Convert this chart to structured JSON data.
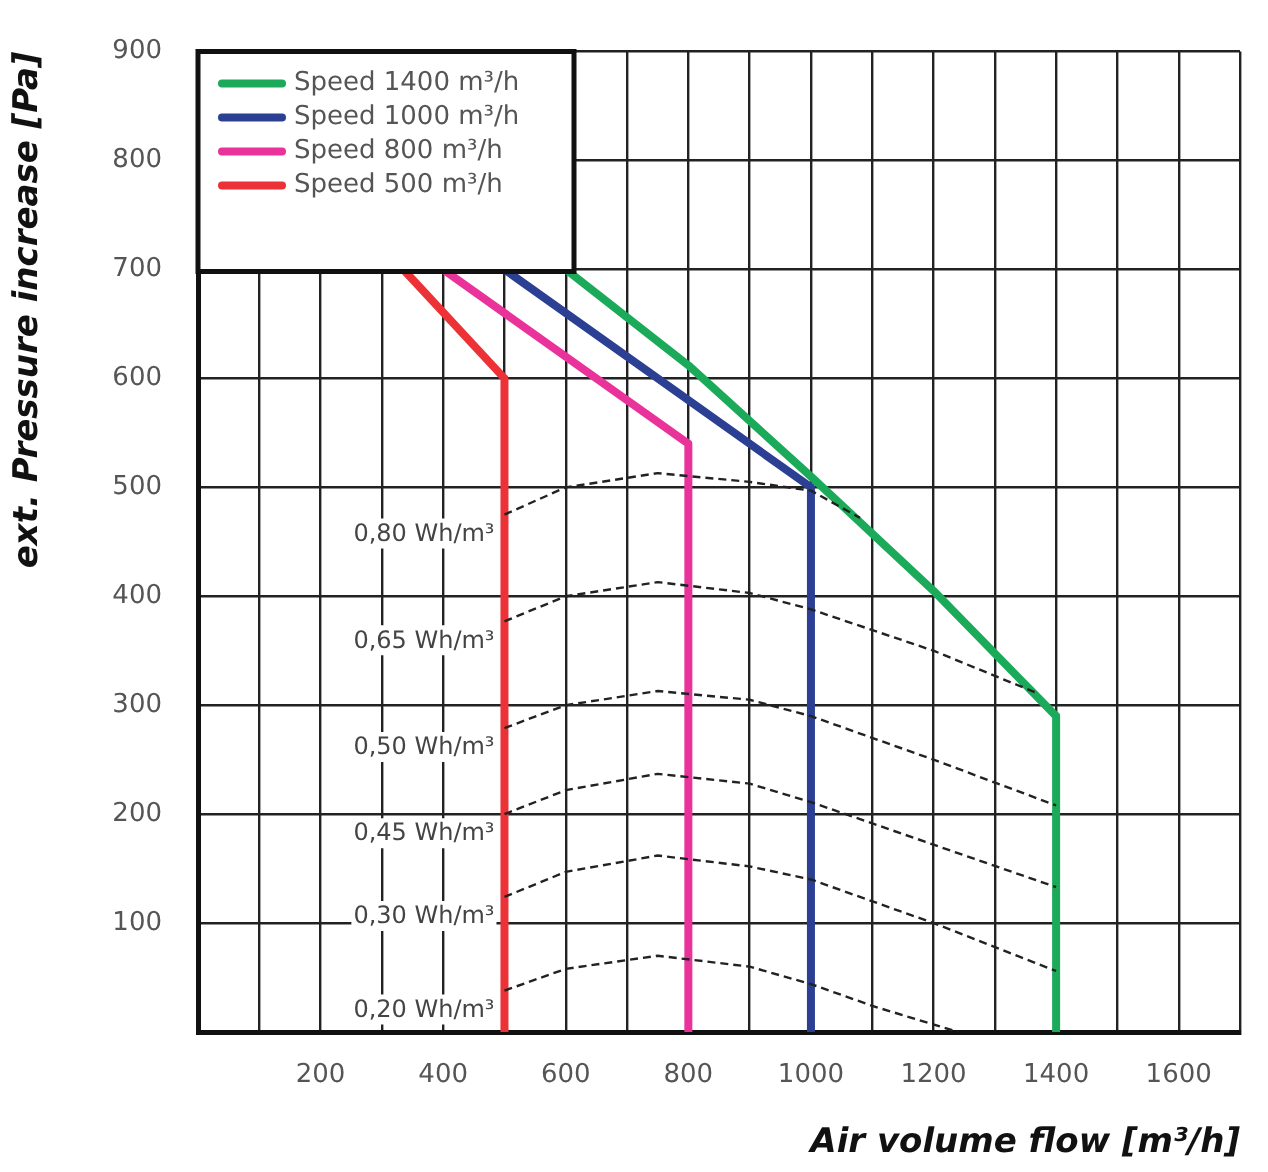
{
  "chart_data": {
    "type": "line",
    "xlabel": "Air volume flow [m³/h]",
    "ylabel": "ext. Pressure increase [Pa]",
    "xlim": [
      0,
      1700
    ],
    "ylim": [
      0,
      900
    ],
    "xticks": [
      {
        "value": 0,
        "label": null
      },
      {
        "value": 100,
        "label": null
      },
      200,
      {
        "value": 300,
        "label": null
      },
      400,
      {
        "value": 500,
        "label": null
      },
      600,
      {
        "value": 700,
        "label": null
      },
      800,
      {
        "value": 900,
        "label": null
      },
      1000,
      {
        "value": 1100,
        "label": null
      },
      1200,
      {
        "value": 1300,
        "label": null
      },
      1400,
      {
        "value": 1500,
        "label": null
      },
      1600,
      {
        "value": 1700,
        "label": null
      }
    ],
    "yticks": [
      {
        "value": 0,
        "label": null
      },
      100,
      200,
      300,
      400,
      500,
      600,
      700,
      800,
      900
    ],
    "grid": true,
    "legend": "top left",
    "marker": "none",
    "series": [
      {
        "name": "Speed 1400 m³/h",
        "color": "#1aaa5a",
        "x": [
          600,
          800,
          1000,
          1200,
          1400,
          1400
        ],
        "values": [
          700,
          612,
          510,
          405,
          290,
          0
        ]
      },
      {
        "name": "Speed 1000 m³/h",
        "color": "#2b3f93",
        "x": [
          500,
          1000,
          1000
        ],
        "values": [
          700,
          500,
          0
        ]
      },
      {
        "name": "Speed 800 m³/h",
        "color": "#e9339a",
        "x": [
          400,
          800,
          800
        ],
        "values": [
          700,
          540,
          0
        ]
      },
      {
        "name": "Speed 500 m³/h",
        "color": "#ec3237",
        "x": [
          335,
          500,
          500
        ],
        "values": [
          700,
          600,
          0
        ]
      },
      {
        "name": "0,80 Wh/m³",
        "color": "#222222",
        "line_style": "dashed",
        "x": [
          500,
          600,
          750,
          900,
          1000,
          1080
        ],
        "values": [
          475,
          500,
          513,
          505,
          497,
          472
        ]
      },
      {
        "name": "0,65 Wh/m³",
        "color": "#222222",
        "line_style": "dashed",
        "x": [
          500,
          600,
          750,
          900,
          1000,
          1200,
          1365
        ],
        "values": [
          377,
          400,
          413,
          403,
          388,
          350,
          312
        ]
      },
      {
        "name": "0,50 Wh/m³",
        "color": "#222222",
        "line_style": "dashed",
        "x": [
          500,
          600,
          750,
          900,
          1000,
          1200,
          1400
        ],
        "values": [
          279,
          300,
          313,
          305,
          290,
          250,
          208
        ]
      },
      {
        "name": "0,45 Wh/m³",
        "color": "#222222",
        "line_style": "dashed",
        "x": [
          500,
          600,
          750,
          900,
          1000,
          1200,
          1400
        ],
        "values": [
          200,
          222,
          237,
          228,
          211,
          172,
          133
        ]
      },
      {
        "name": "0,30 Wh/m³",
        "color": "#222222",
        "line_style": "dashed",
        "x": [
          500,
          600,
          750,
          900,
          1000,
          1200,
          1400
        ],
        "values": [
          124,
          147,
          162,
          152,
          140,
          100,
          56
        ]
      },
      {
        "name": "0,20 Wh/m³",
        "color": "#222222",
        "line_style": "dashed",
        "x": [
          500,
          600,
          750,
          900,
          1000,
          1100,
          1240
        ],
        "values": [
          38,
          58,
          70,
          60,
          44,
          24,
          0
        ]
      }
    ]
  }
}
